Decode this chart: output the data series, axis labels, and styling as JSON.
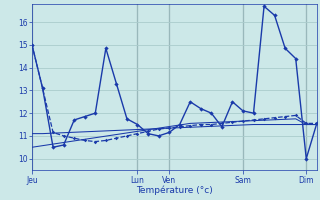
{
  "background_color": "#cce8e8",
  "grid_color": "#aacccc",
  "line_color": "#1a3aaa",
  "xlabel": "Température (°c)",
  "ylim": [
    9.5,
    16.8
  ],
  "xlim": [
    0,
    27
  ],
  "yticks": [
    10,
    11,
    12,
    13,
    14,
    15,
    16
  ],
  "day_labels": [
    "Jeu",
    "Lun",
    "Ven",
    "Sam",
    "Dim"
  ],
  "day_positions": [
    0,
    10,
    13,
    20,
    26
  ],
  "s1": [
    15.0,
    13.1,
    10.5,
    10.6,
    11.7,
    11.85,
    12.0,
    14.85,
    13.3,
    11.75,
    11.5,
    11.1,
    11.0,
    11.15,
    11.5,
    12.5,
    12.2,
    12.0,
    11.4,
    12.5,
    12.1,
    12.0,
    16.7,
    16.3,
    14.85,
    14.4,
    10.0,
    11.55
  ],
  "s2": [
    15.0,
    13.1,
    11.15,
    11.0,
    10.9,
    10.8,
    10.75,
    10.8,
    10.9,
    11.0,
    11.1,
    11.2,
    11.3,
    11.35,
    11.4,
    11.45,
    11.5,
    11.5,
    11.55,
    11.6,
    11.65,
    11.7,
    11.75,
    11.8,
    11.85,
    11.9,
    11.55,
    11.55
  ],
  "s3": [
    11.1,
    11.1,
    11.12,
    11.14,
    11.16,
    11.18,
    11.2,
    11.22,
    11.24,
    11.26,
    11.28,
    11.3,
    11.32,
    11.34,
    11.36,
    11.38,
    11.4,
    11.42,
    11.44,
    11.46,
    11.48,
    11.5,
    11.5,
    11.5,
    11.5,
    11.5,
    11.5,
    11.5
  ],
  "s4": [
    10.5,
    10.57,
    10.64,
    10.71,
    10.78,
    10.85,
    10.92,
    10.99,
    11.06,
    11.13,
    11.2,
    11.27,
    11.34,
    11.41,
    11.48,
    11.55,
    11.57,
    11.59,
    11.61,
    11.63,
    11.65,
    11.67,
    11.69,
    11.71,
    11.73,
    11.75,
    11.5,
    11.5
  ]
}
